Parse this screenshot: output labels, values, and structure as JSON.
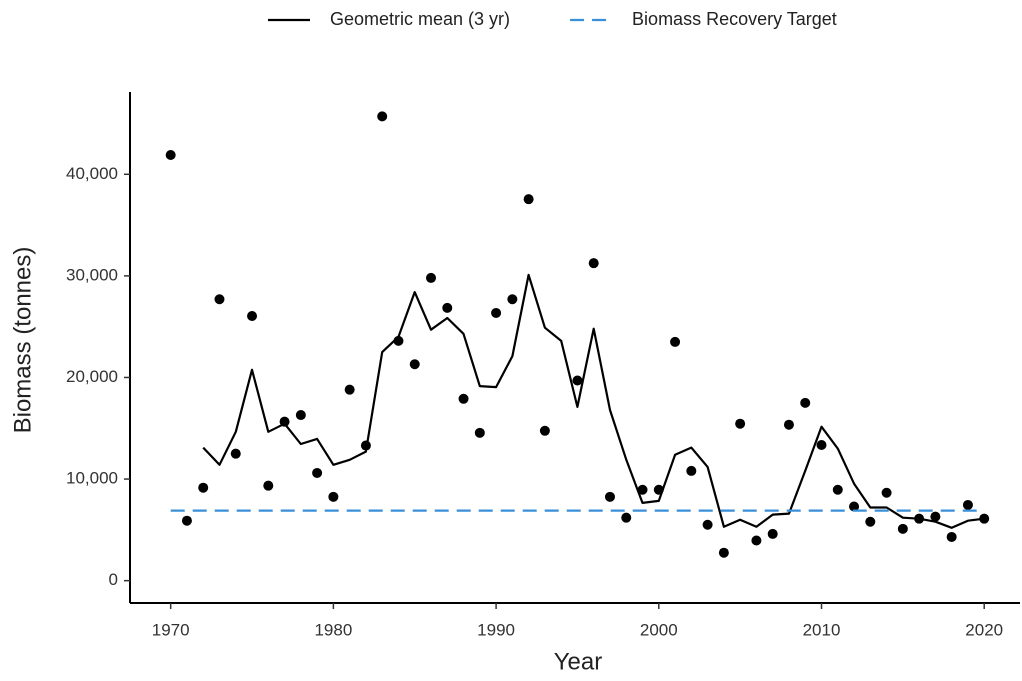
{
  "chart_data": {
    "type": "line",
    "x_label": "Year",
    "y_label": "Biomass (tonnes)",
    "legend": "top",
    "grid": false,
    "xlim": [
      1967.5,
      2022.2
    ],
    "ylim": [
      -2200,
      48100
    ],
    "xticks": [
      1970,
      1980,
      1990,
      2000,
      2010,
      2020
    ],
    "yticks": [
      0,
      {
        "value": 10000,
        "label": "10,000"
      },
      {
        "value": 20000,
        "label": "20,000"
      },
      {
        "value": 30000,
        "label": "30,000"
      },
      {
        "value": 40000,
        "label": "40,000"
      }
    ],
    "series": [
      {
        "type": "scatter",
        "color": "#000000",
        "x": [
          1970,
          1971,
          1972,
          1973,
          1974,
          1975,
          1976,
          1977,
          1978,
          1979,
          1980,
          1981,
          1982,
          1983,
          1984,
          1985,
          1986,
          1987,
          1988,
          1989,
          1990,
          1991,
          1992,
          1993,
          1995,
          1996,
          1997,
          1998,
          1999,
          2000,
          2001,
          2002,
          2003,
          2004,
          2005,
          2006,
          2007,
          2008,
          2009,
          2010,
          2011,
          2012,
          2013,
          2014,
          2015,
          2016,
          2017,
          2018,
          2019,
          2020
        ],
        "values": [
          41900,
          5900,
          9150,
          27700,
          12500,
          26050,
          9350,
          15650,
          16300,
          10600,
          8250,
          18800,
          13300,
          45700,
          23600,
          21300,
          29800,
          26850,
          17900,
          14550,
          26350,
          27700,
          37550,
          14750,
          19700,
          31250,
          8250,
          6200,
          8950,
          8950,
          23500,
          10800,
          5500,
          2750,
          15450,
          3950,
          4600,
          15350,
          17500,
          13350,
          8950,
          7300,
          5800,
          8650,
          5100,
          6100,
          6300,
          4300,
          7450,
          6100
        ]
      },
      {
        "type": "line",
        "name": "Geometric mean (3 yr)",
        "color": "#000000",
        "x": [
          1972,
          1973,
          1974,
          1975,
          1976,
          1977,
          1978,
          1979,
          1980,
          1981,
          1982,
          1983,
          1984,
          1985,
          1986,
          1987,
          1988,
          1989,
          1990,
          1991,
          1992,
          1993,
          1994,
          1995,
          1996,
          1997,
          1998,
          1999,
          2000,
          2001,
          2002,
          2003,
          2004,
          2005,
          2006,
          2007,
          2008,
          2009,
          2010,
          2011,
          2012,
          2013,
          2014,
          2015,
          2016,
          2017,
          2018,
          2019,
          2020
        ],
        "values": [
          13100,
          11400,
          14650,
          20750,
          14650,
          15450,
          13450,
          13950,
          11400,
          11900,
          12700,
          22500,
          24000,
          28400,
          24700,
          25850,
          24300,
          19150,
          19050,
          22100,
          30100,
          24900,
          23600,
          17100,
          24800,
          16800,
          11900,
          7650,
          7850,
          12400,
          13100,
          11200,
          5300,
          6000,
          5300,
          6500,
          6600,
          10800,
          15150,
          13000,
          9550,
          7200,
          7200,
          6200,
          6100,
          5800,
          5200,
          5900,
          6100
        ]
      },
      {
        "type": "line",
        "name": "Biomass Recovery Target",
        "color": "#3a8fd9",
        "dashed": true,
        "x": [
          1970,
          2020
        ],
        "values": [
          6900,
          6900
        ]
      }
    ]
  }
}
